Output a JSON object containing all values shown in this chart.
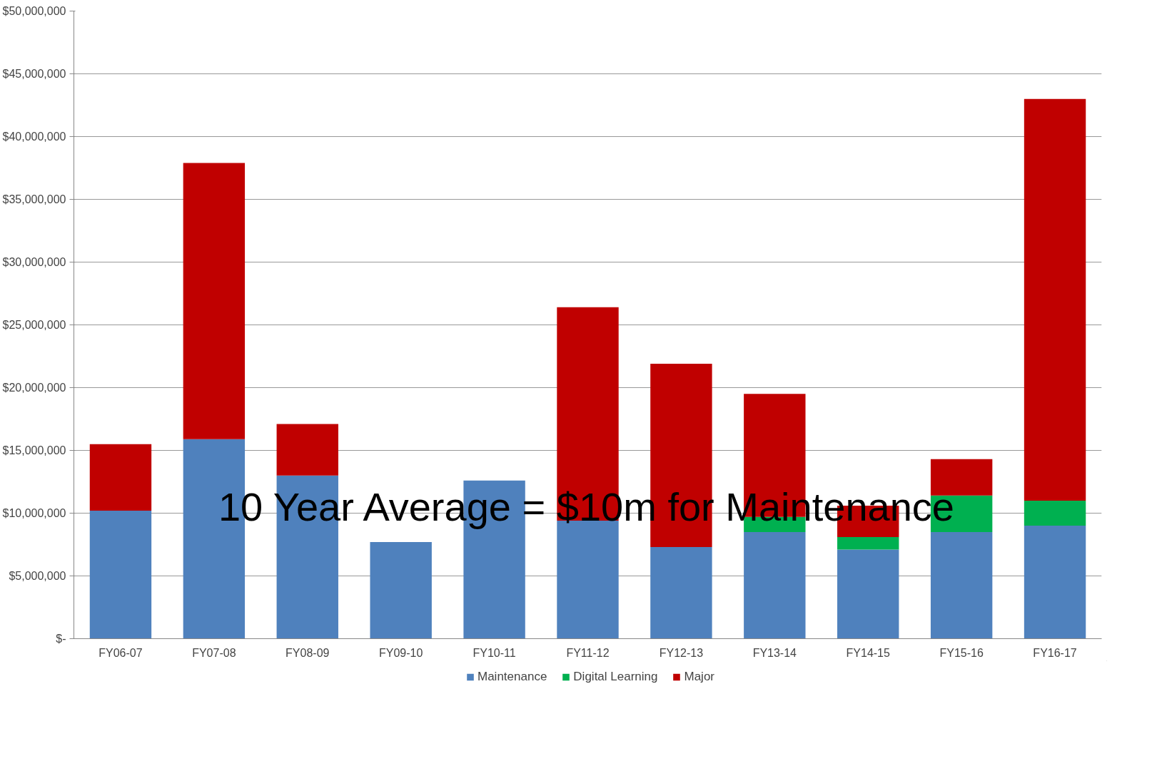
{
  "chart_data": {
    "type": "bar",
    "stacked": true,
    "categories": [
      "FY06-07",
      "FY07-08",
      "FY08-09",
      "FY09-10",
      "FY10-11",
      "FY11-12",
      "FY12-13",
      "FY13-14",
      "FY14-15",
      "FY15-16",
      "FY16-17"
    ],
    "series": [
      {
        "name": "Maintenance",
        "color": "#4f81bd",
        "values": [
          10200000,
          15900000,
          13000000,
          7700000,
          12600000,
          9400000,
          7300000,
          8500000,
          7100000,
          8500000,
          9000000
        ]
      },
      {
        "name": "Digital Learning",
        "color": "#00b050",
        "values": [
          null,
          null,
          null,
          null,
          null,
          null,
          null,
          1200000,
          1000000,
          2900000,
          2000000
        ]
      },
      {
        "name": "Major",
        "color": "#c00000",
        "values": [
          5300000,
          22000000,
          4100000,
          null,
          null,
          17000000,
          14600000,
          9800000,
          2500000,
          2900000,
          32000000
        ]
      }
    ],
    "ylim": [
      0,
      50000000
    ],
    "yticks": [
      {
        "value": 0,
        "label": "$-"
      },
      {
        "value": 5000000,
        "label": "$5,000,000"
      },
      {
        "value": 10000000,
        "label": "$10,000,000"
      },
      {
        "value": 15000000,
        "label": "$15,000,000"
      },
      {
        "value": 20000000,
        "label": "$20,000,000"
      },
      {
        "value": 25000000,
        "label": "$25,000,000"
      },
      {
        "value": 30000000,
        "label": "$30,000,000"
      },
      {
        "value": 35000000,
        "label": "$35,000,000"
      },
      {
        "value": 40000000,
        "label": "$40,000,000"
      },
      {
        "value": 45000000,
        "label": "$45,000,000"
      },
      {
        "value": 50000000,
        "label": "$50,000,000"
      }
    ],
    "grid": "y",
    "legend": "bottom",
    "annotations": [
      "10 Year Average = $10m for Maintenance"
    ]
  }
}
